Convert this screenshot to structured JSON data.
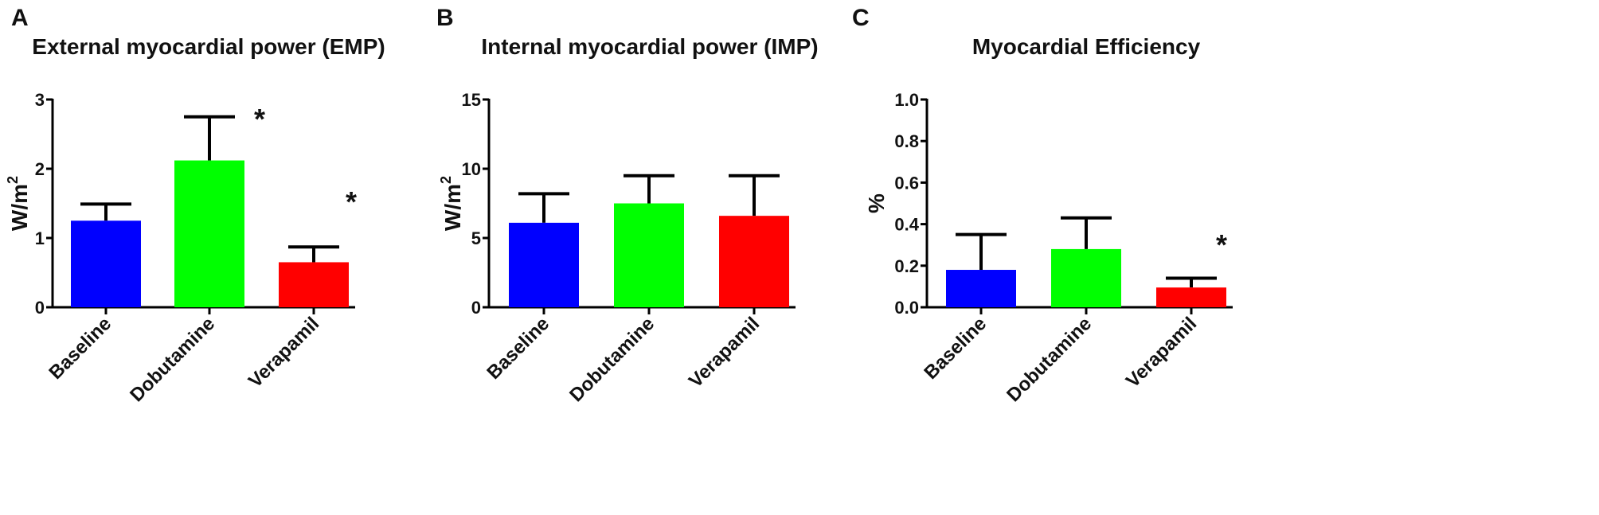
{
  "chart_data": [
    {
      "type": "bar",
      "panel": "A",
      "title": "External myocardial power (EMP)",
      "ylabel": "W/m",
      "ylabel_sup": "2",
      "ylim": [
        0,
        3
      ],
      "yticks": [
        "0",
        "1",
        "2",
        "3"
      ],
      "categories": [
        "Baseline",
        "Dobutamine",
        "Verapamil"
      ],
      "values": [
        1.25,
        2.12,
        0.65
      ],
      "errors": [
        0.24,
        0.63,
        0.22
      ],
      "colors": [
        "#0000ff",
        "#00ff00",
        "#ff0000"
      ],
      "significance": [
        "",
        "*",
        "*"
      ]
    },
    {
      "type": "bar",
      "panel": "B",
      "title": "Internal myocardial power (IMP)",
      "ylabel": "W/m",
      "ylabel_sup": "2",
      "ylim": [
        0,
        15
      ],
      "yticks": [
        "0",
        "5",
        "10",
        "15"
      ],
      "categories": [
        "Baseline",
        "Dobutamine",
        "Verapamil"
      ],
      "values": [
        6.1,
        7.5,
        6.6
      ],
      "errors": [
        2.1,
        2.0,
        2.9
      ],
      "colors": [
        "#0000ff",
        "#00ff00",
        "#ff0000"
      ],
      "significance": [
        "",
        "",
        ""
      ]
    },
    {
      "type": "bar",
      "panel": "C",
      "title": "Myocardial Efficiency",
      "ylabel": "%",
      "ylabel_sup": "",
      "ylim": [
        0,
        1.0
      ],
      "yticks": [
        "0.0",
        "0.2",
        "0.4",
        "0.6",
        "0.8",
        "1.0"
      ],
      "categories": [
        "Baseline",
        "Dobutamine",
        "Verapamil"
      ],
      "values": [
        0.18,
        0.28,
        0.095
      ],
      "errors": [
        0.17,
        0.15,
        0.045
      ],
      "colors": [
        "#0000ff",
        "#00ff00",
        "#ff0000"
      ],
      "significance": [
        "",
        "",
        "*"
      ]
    }
  ]
}
